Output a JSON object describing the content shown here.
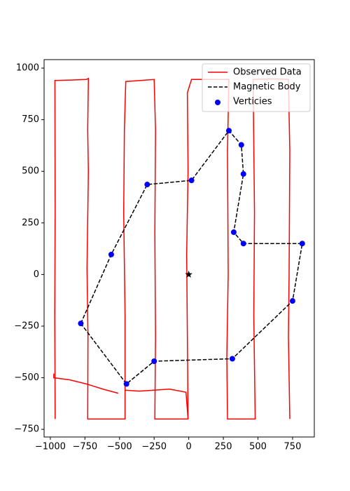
{
  "chart_data": {
    "type": "line",
    "xlim": [
      -1045,
      907
    ],
    "ylim": [
      -787,
      1041
    ],
    "xticks": [
      {
        "value": -1000,
        "label": "−1000"
      },
      {
        "value": -750,
        "label": "−750"
      },
      {
        "value": -500,
        "label": "−500"
      },
      {
        "value": -250,
        "label": "−250"
      },
      0,
      250,
      500,
      750
    ],
    "yticks": [
      {
        "value": -750,
        "label": "−750"
      },
      {
        "value": -500,
        "label": "−500"
      },
      {
        "value": -250,
        "label": "−250"
      },
      0,
      250,
      500,
      750,
      1000
    ],
    "grid": false,
    "legend": "upper right",
    "series": [
      {
        "name": "Observed Data",
        "type": "line",
        "color": "#ff0000",
        "linestyle": "solid",
        "x": [
          -975,
          -975,
          -860,
          -740,
          -620,
          -510,
          null,
          -965,
          -968,
          -965,
          -967,
          -850,
          -740,
          -725,
          -730,
          -725,
          -735,
          -728,
          -730,
          -600,
          -460,
          -460,
          -470,
          -465,
          -455,
          -350,
          -250,
          -240,
          -245,
          -240,
          -245,
          -120,
          -5,
          -10,
          -15,
          -5,
          -10,
          20,
          150,
          290,
          280,
          285,
          275,
          280,
          380,
          480,
          470,
          475,
          465,
          600,
          720,
          730,
          725,
          720,
          730,
          null,
          -460,
          -360,
          -250,
          -140,
          -20,
          -5
        ],
        "y": [
          -480,
          -500,
          -510,
          -530,
          -555,
          -575,
          null,
          -700,
          -200,
          300,
          940,
          942,
          945,
          950,
          700,
          500,
          30,
          -300,
          -700,
          -700,
          -700,
          -200,
          300,
          700,
          935,
          940,
          945,
          700,
          200,
          -300,
          -700,
          -700,
          -700,
          -300,
          100,
          500,
          880,
          945,
          945,
          945,
          600,
          0,
          -400,
          -700,
          -700,
          -700,
          -200,
          300,
          945,
          948,
          945,
          600,
          0,
          -300,
          -700,
          null,
          -560,
          -565,
          -560,
          -555,
          -570,
          -700
        ]
      },
      {
        "name": "Magnetic Body",
        "type": "line",
        "color": "#000000",
        "linestyle": "dashed",
        "x": [
          -780,
          -560,
          -300,
          20,
          290,
          380,
          395,
          325,
          395,
          820,
          750,
          315,
          -250,
          -450,
          -780
        ],
        "y": [
          -237,
          97,
          436,
          456,
          697,
          628,
          487,
          205,
          150,
          150,
          -128,
          -408,
          -420,
          -530,
          -237
        ]
      },
      {
        "name": "Verticies",
        "type": "scatter",
        "color": "#0000ff",
        "x": [
          -780,
          -560,
          -300,
          20,
          290,
          380,
          395,
          325,
          395,
          820,
          750,
          315,
          -250,
          -450
        ],
        "y": [
          -237,
          97,
          436,
          456,
          697,
          628,
          487,
          205,
          150,
          150,
          -128,
          -408,
          -420,
          -530
        ]
      }
    ],
    "star": {
      "x": 0,
      "y": 0,
      "color": "#000000"
    }
  }
}
